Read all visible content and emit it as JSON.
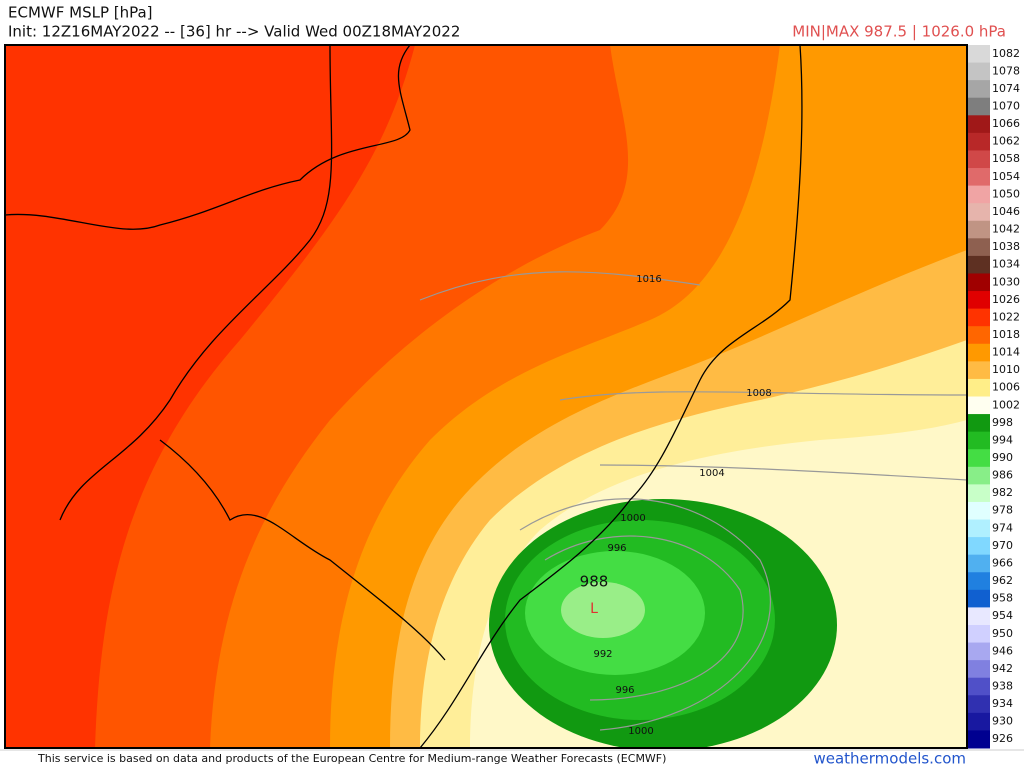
{
  "header": {
    "title": "ECMWF MSLP [hPa]",
    "init": "Init: 12Z16MAY2022 -- [36] hr --> Valid Wed 00Z18MAY2022",
    "minmax": "MIN|MAX 987.5 | 1026.0 hPa"
  },
  "colorbar": {
    "levels": [
      1082,
      1078,
      1074,
      1070,
      1066,
      1062,
      1058,
      1054,
      1050,
      1046,
      1042,
      1038,
      1034,
      1030,
      1026,
      1022,
      1018,
      1014,
      1010,
      1006,
      1002,
      998,
      994,
      990,
      986,
      982,
      978,
      974,
      970,
      966,
      962,
      958,
      954,
      950,
      946,
      942,
      938,
      934,
      930,
      926
    ],
    "colors": [
      "#d9d9d9",
      "#c4c4c4",
      "#a6a6a6",
      "#7e7e7e",
      "#a01818",
      "#b82828",
      "#d04848",
      "#e06a6a",
      "#f0a4a4",
      "#e6b4ac",
      "#c09484",
      "#8e6050",
      "#5e3022",
      "#a00000",
      "#e00000",
      "#ff3300",
      "#ff6600",
      "#ff9900",
      "#ffbb44",
      "#ffee88",
      "#fffff0",
      "#119911",
      "#22bb22",
      "#44dd44",
      "#88ee88",
      "#c8ffc8",
      "#e0ffff",
      "#b0f0ff",
      "#80d8ff",
      "#50b0f0",
      "#2080e0",
      "#1060d0",
      "#e8e8ff",
      "#d0d0ff",
      "#a8a8f0",
      "#8080e0",
      "#5050c8",
      "#3030b0",
      "#1818a0",
      "#000090"
    ]
  },
  "contour_labels": [
    "1016",
    "1008",
    "1004",
    "1000",
    "996",
    "988",
    "992",
    "996",
    "1000"
  ],
  "low": "L",
  "footer": {
    "credit": "This service is based on data and products of the European Centre for Medium-range Weather Forecasts (ECMWF)",
    "site": "weathermodels.com"
  }
}
